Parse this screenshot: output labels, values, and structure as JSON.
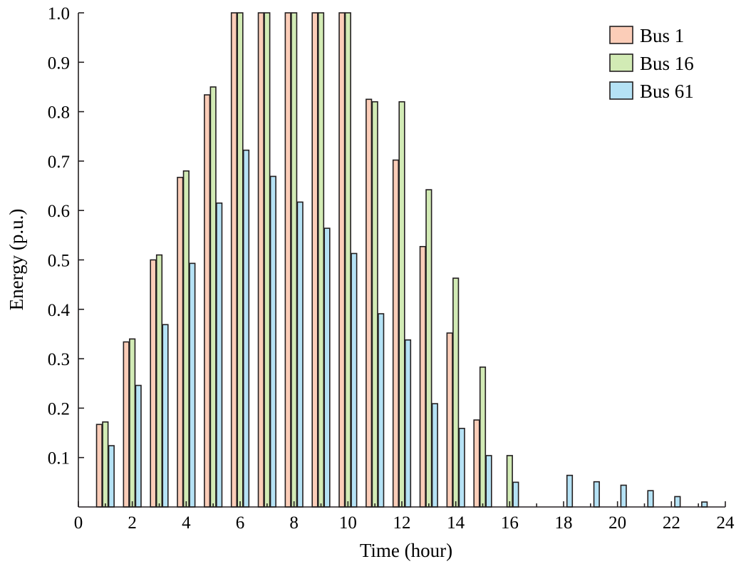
{
  "chart_data": {
    "type": "bar",
    "title": "",
    "xlabel": "Time (hour)",
    "ylabel": "Energy (p.u.)",
    "xlim": [
      0,
      24
    ],
    "ylim": [
      0,
      1.0
    ],
    "xticks": [
      "0",
      "2",
      "4",
      "6",
      "8",
      "10",
      "12",
      "14",
      "16",
      "18",
      "20",
      "22",
      "24"
    ],
    "yticks": [
      "0.1",
      "0.2",
      "0.3",
      "0.4",
      "0.5",
      "0.6",
      "0.7",
      "0.8",
      "0.9",
      "1.0"
    ],
    "grid": false,
    "legend_position": "top-right",
    "x": [
      1,
      2,
      3,
      4,
      5,
      6,
      7,
      8,
      9,
      10,
      11,
      12,
      13,
      14,
      15,
      16,
      17,
      18,
      19,
      20,
      21,
      22,
      23
    ],
    "series": [
      {
        "name": "Bus 1",
        "color": "#fbcdb8",
        "values": [
          0.167,
          0.334,
          0.5,
          0.667,
          0.834,
          1.0,
          1.0,
          1.0,
          1.0,
          1.0,
          0.825,
          0.702,
          0.527,
          0.352,
          0.176,
          0,
          0,
          0,
          0,
          0,
          0,
          0,
          0
        ]
      },
      {
        "name": "Bus 16",
        "color": "#d2ebb5",
        "values": [
          0.172,
          0.34,
          0.51,
          0.68,
          0.85,
          1.0,
          1.0,
          1.0,
          1.0,
          1.0,
          0.82,
          0.82,
          0.642,
          0.463,
          0.283,
          0.104,
          0,
          0,
          0,
          0,
          0,
          0,
          0
        ]
      },
      {
        "name": "Bus 61",
        "color": "#b5e2f5",
        "values": [
          0.124,
          0.246,
          0.369,
          0.493,
          0.615,
          0.722,
          0.669,
          0.617,
          0.564,
          0.513,
          0.391,
          0.338,
          0.209,
          0.159,
          0.104,
          0.05,
          0,
          0.064,
          0.051,
          0.044,
          0.033,
          0.021,
          0.01
        ]
      }
    ]
  }
}
